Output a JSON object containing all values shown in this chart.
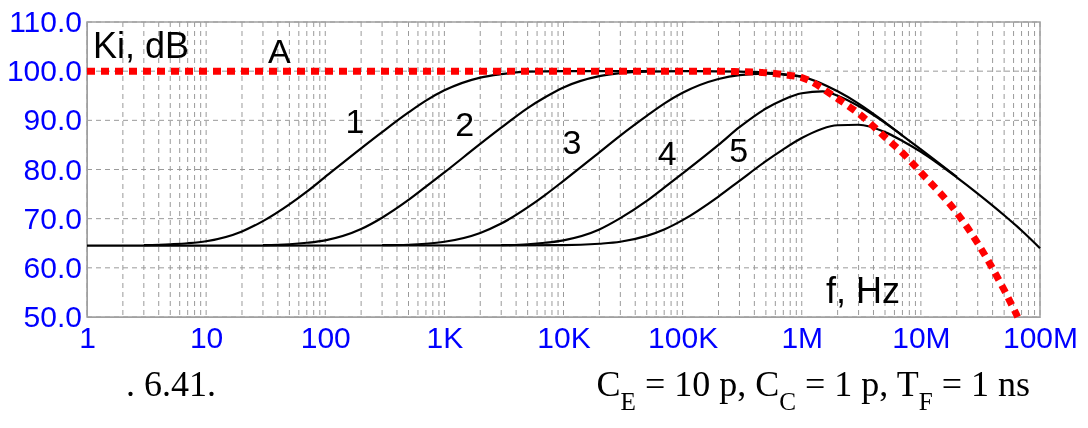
{
  "chart_data": {
    "type": "line",
    "xlabel": "f, Hz",
    "ylabel": "Ki, dB",
    "log": "x",
    "grid": true,
    "xlim": [
      1,
      100000000
    ],
    "ylim": [
      50,
      110
    ],
    "xticks": [
      1,
      10,
      100,
      {
        "value": 1000,
        "label": "1K"
      },
      {
        "value": 10000,
        "label": "10K"
      },
      {
        "value": 100000,
        "label": "100K"
      },
      {
        "value": 1000000,
        "label": "1M"
      },
      {
        "value": 10000000,
        "label": "10M"
      },
      {
        "value": 100000000,
        "label": "100M"
      }
    ],
    "yticks": [
      {
        "value": 50,
        "label": "50.0"
      },
      {
        "value": 60,
        "label": "60.0"
      },
      {
        "value": 70,
        "label": "70.0"
      },
      {
        "value": 80,
        "label": "80.0"
      },
      {
        "value": 90,
        "label": "90.0"
      },
      {
        "value": 100,
        "label": "100.0"
      },
      {
        "value": 110,
        "label": "110.0"
      }
    ],
    "series": [
      {
        "name": "1",
        "color": "#000000",
        "line_style": "solid",
        "x": [
          3,
          5,
          7,
          10,
          20,
          30,
          50,
          70,
          100,
          200,
          300,
          500,
          700,
          1000,
          2000,
          3000,
          5000,
          10000,
          30000,
          50000
        ],
        "values": [
          64.6,
          64.8,
          65.0,
          65.4,
          67.4,
          69.5,
          72.9,
          75.5,
          78.5,
          84.3,
          87.6,
          91.6,
          94.0,
          96.1,
          98.7,
          99.4,
          99.9,
          100.0,
          100.0,
          100.0
        ]
      },
      {
        "name": "2",
        "color": "#000000",
        "line_style": "solid",
        "x": [
          30,
          50,
          70,
          100,
          200,
          300,
          500,
          700,
          1000,
          2000,
          3000,
          5000,
          7000,
          10000,
          20000,
          30000,
          50000,
          100000,
          300000,
          500000,
          700000,
          1000000
        ],
        "values": [
          64.6,
          64.8,
          65.1,
          65.6,
          67.9,
          70.2,
          73.8,
          76.5,
          79.4,
          85.2,
          88.5,
          92.5,
          94.7,
          96.7,
          99.0,
          99.6,
          99.9,
          100.0,
          99.9,
          99.7,
          99.4,
          98.9
        ]
      },
      {
        "name": "3",
        "color": "#000000",
        "line_style": "solid",
        "x": [
          300,
          500,
          700,
          1000,
          2000,
          3000,
          5000,
          7000,
          10000,
          20000,
          30000,
          50000,
          70000,
          100000,
          200000,
          300000,
          500000,
          700000,
          1000000,
          2000000,
          3000000,
          5000000,
          7000000
        ],
        "values": [
          64.6,
          64.7,
          64.9,
          65.3,
          67.1,
          69.0,
          72.3,
          74.8,
          77.7,
          83.5,
          86.9,
          90.9,
          93.4,
          95.6,
          98.4,
          99.2,
          99.5,
          99.3,
          98.9,
          95.9,
          93.4,
          89.6,
          86.9
        ]
      },
      {
        "name": "4",
        "color": "#000000",
        "line_style": "solid",
        "x": [
          3000,
          5000,
          7000,
          10000,
          20000,
          30000,
          50000,
          70000,
          100000,
          200000,
          300000,
          500000,
          700000,
          1000000,
          1500000,
          2000000,
          3000000,
          5000000,
          7000000,
          10000000,
          20000000
        ],
        "values": [
          64.6,
          64.8,
          65.1,
          65.6,
          67.8,
          70.1,
          73.6,
          76.3,
          79.2,
          85.0,
          88.6,
          92.4,
          94.2,
          95.5,
          95.9,
          95.0,
          92.9,
          89.5,
          86.9,
          84.1,
          78.5
        ]
      },
      {
        "name": "5",
        "color": "#000000",
        "line_style": "solid",
        "x": [
          1,
          10000,
          20000,
          30000,
          50000,
          70000,
          100000,
          200000,
          300000,
          500000,
          700000,
          1000000,
          2000000,
          3000000,
          5000000,
          7000000,
          10000000,
          20000000,
          30000000,
          50000000,
          70000000,
          100000000
        ],
        "values": [
          64.5,
          64.6,
          64.9,
          65.3,
          66.5,
          67.8,
          69.7,
          74.5,
          77.7,
          81.7,
          84.1,
          86.4,
          89.0,
          89.1,
          87.6,
          85.8,
          83.6,
          78.4,
          75.1,
          70.7,
          67.6,
          64.0
        ]
      },
      {
        "name": "A",
        "color": "#ff0000",
        "line_style": "dotted",
        "x": [
          1,
          100000,
          200000,
          300000,
          500000,
          700000,
          1000000,
          2000000,
          3000000,
          5000000,
          7000000,
          10000000,
          20000000,
          30000000,
          50000000,
          65000000
        ],
        "values": [
          100.0,
          100.0,
          100.0,
          99.9,
          99.7,
          99.3,
          98.7,
          94.4,
          91.4,
          86.6,
          83.4,
          79.4,
          71.2,
          65.0,
          55.5,
          50.0
        ]
      }
    ],
    "annotations": [
      ". 6.41.",
      "C$_{E}$ = 10 p, C$_{C}$ = 1 p, T$_{F}$ = 1 ns"
    ]
  }
}
